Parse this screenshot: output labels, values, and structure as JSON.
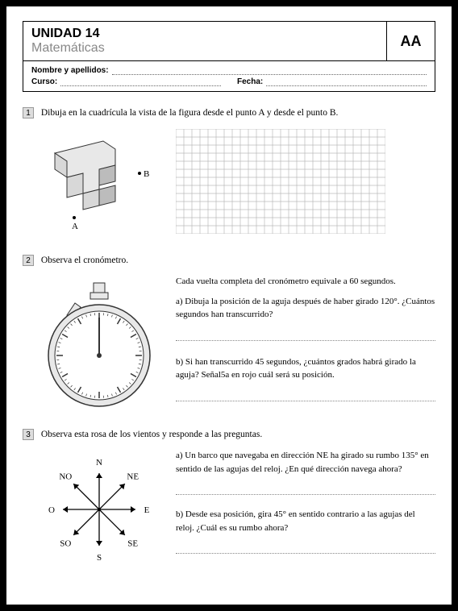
{
  "header": {
    "unit": "UNIDAD 14",
    "subject": "Matemáticas",
    "code": "AA",
    "name_label": "Nombre y apellidos:",
    "course_label": "Curso:",
    "date_label": "Fecha:"
  },
  "q1": {
    "num": "1",
    "text": "Dibuja en la cuadrícula la vista de la figura desde el punto A y desde el punto B.",
    "point_a": "A",
    "point_b": "B",
    "grid": {
      "cols": 26,
      "rows": 13,
      "cell": 10,
      "stroke": "#bbb"
    },
    "figure": {
      "fill_top": "#e8e8e8",
      "fill_side": "#bcbcbc",
      "fill_front": "#d8d8d8",
      "stroke": "#333"
    }
  },
  "q2": {
    "num": "2",
    "text": "Observa el cronómetro.",
    "intro": "Cada vuelta completa del cronómetro equivale a 60 segundos.",
    "a": "a) Dibuja la posición de la aguja después de haber girado 120°. ¿Cuántos segundos han transcurrido?",
    "b": "b) Si han transcurrido 45 segundos, ¿cuántos grados habrá girado la aguja? Señal5a en rojo cuál será su posición.",
    "stopwatch": {
      "body_fill": "#e8e8e8",
      "face_fill": "#ffffff",
      "stroke": "#333",
      "ticks": 12
    }
  },
  "q3": {
    "num": "3",
    "text": "Observa esta rosa de los vientos y responde a las preguntas.",
    "a": "a) Un barco que navegaba en dirección NE ha girado su rumbo 135° en sentido de las agujas del reloj. ¿En qué dirección navega ahora?",
    "b": "b) Desde esa posición, gira 45° en sentido contrario a las agujas del reloj. ¿Cuál es su rumbo ahora?",
    "compass": {
      "labels": {
        "N": "N",
        "NE": "NE",
        "E": "E",
        "SE": "SE",
        "S": "S",
        "SO": "SO",
        "O": "O",
        "NO": "NO"
      },
      "stroke": "#000"
    }
  }
}
